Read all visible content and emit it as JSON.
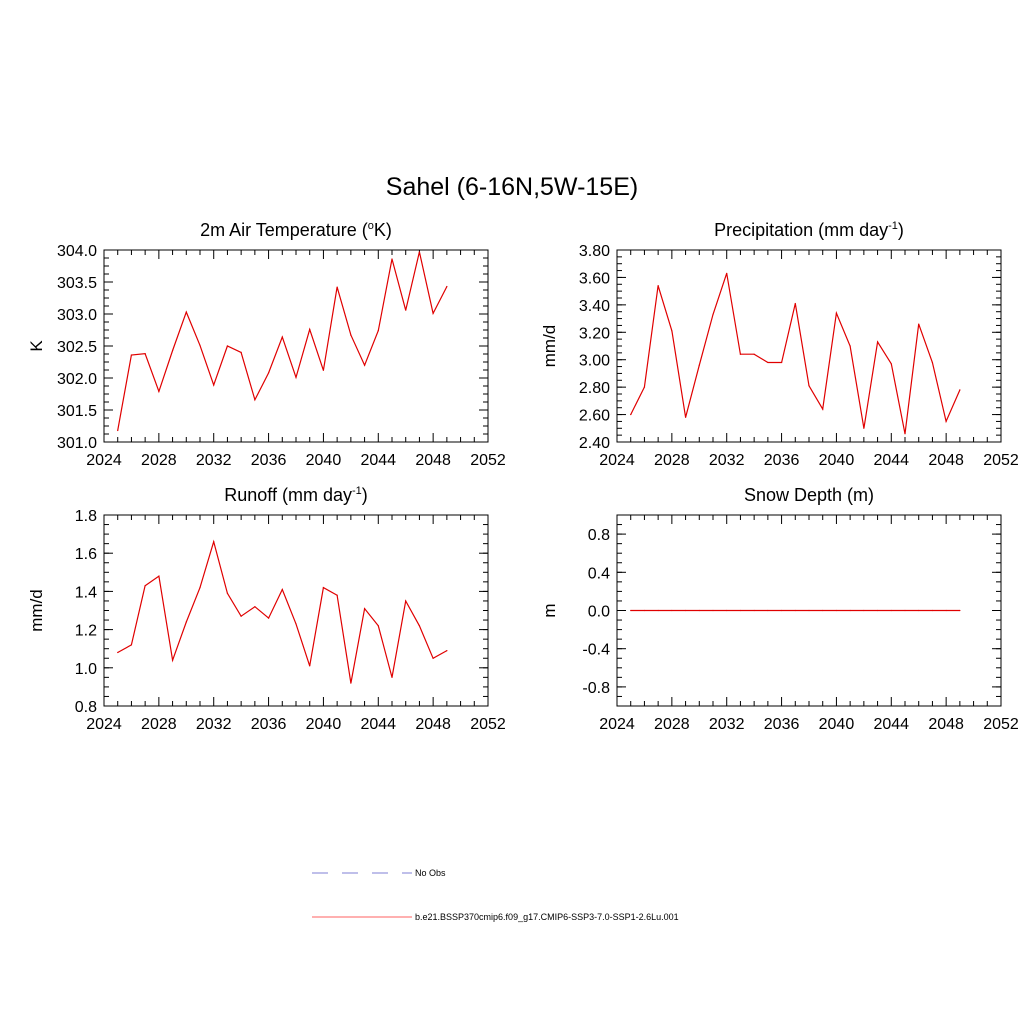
{
  "figure": {
    "title": "Sahel (6-16N,5W-15E)"
  },
  "chart_data": [
    {
      "type": "line",
      "title": "2m Air Temperature (",
      "title_sup": "o",
      "title_after": "K)",
      "ylabel": "K",
      "xlim": [
        2024,
        2052
      ],
      "ylim": [
        301.0,
        304.0
      ],
      "xticks": [
        "2024",
        "2028",
        "2032",
        "2036",
        "2040",
        "2044",
        "2048",
        "2052"
      ],
      "yticks": [
        "301.0",
        "301.5",
        "302.0",
        "302.5",
        "303.0",
        "303.5",
        "304.0"
      ],
      "x": [
        2025,
        2026,
        2027,
        2028,
        2029,
        2030,
        2031,
        2032,
        2033,
        2034,
        2035,
        2036,
        2037,
        2038,
        2039,
        2040,
        2041,
        2042,
        2043,
        2044,
        2045,
        2046,
        2047,
        2048,
        2049
      ],
      "series": [
        {
          "color": "#e00000",
          "values": [
            301.18,
            302.36,
            302.38,
            301.79,
            302.43,
            303.03,
            302.51,
            301.89,
            302.5,
            302.4,
            301.66,
            302.08,
            302.64,
            302.01,
            302.76,
            302.12,
            303.42,
            302.67,
            302.2,
            302.74,
            303.86,
            303.06,
            303.97,
            303.01,
            303.43
          ]
        }
      ]
    },
    {
      "type": "line",
      "title": "Precipitation (mm day",
      "title_sup": "-1",
      "title_after": ")",
      "ylabel": "mm/d",
      "xlim": [
        2024,
        2052
      ],
      "ylim": [
        2.4,
        3.8
      ],
      "xticks": [
        "2024",
        "2028",
        "2032",
        "2036",
        "2040",
        "2044",
        "2048",
        "2052"
      ],
      "yticks": [
        "2.40",
        "2.60",
        "2.80",
        "3.00",
        "3.20",
        "3.40",
        "3.60",
        "3.80"
      ],
      "x": [
        2025,
        2026,
        2027,
        2028,
        2029,
        2030,
        2031,
        2032,
        2033,
        2034,
        2035,
        2036,
        2037,
        2038,
        2039,
        2040,
        2041,
        2042,
        2043,
        2044,
        2045,
        2046,
        2047,
        2048,
        2049
      ],
      "series": [
        {
          "color": "#e00000",
          "values": [
            2.6,
            2.8,
            3.54,
            3.21,
            2.58,
            2.96,
            3.33,
            3.63,
            3.04,
            3.04,
            2.98,
            2.98,
            3.41,
            2.81,
            2.64,
            3.34,
            3.1,
            2.5,
            3.13,
            2.97,
            2.46,
            3.26,
            2.98,
            2.55,
            2.78
          ]
        }
      ]
    },
    {
      "type": "line",
      "title": "Runoff (mm day",
      "title_sup": "-1",
      "title_after": ")",
      "ylabel": "mm/d",
      "xlim": [
        2024,
        2052
      ],
      "ylim": [
        0.8,
        1.8
      ],
      "xticks": [
        "2024",
        "2028",
        "2032",
        "2036",
        "2040",
        "2044",
        "2048",
        "2052"
      ],
      "yticks": [
        "0.8",
        "1.0",
        "1.2",
        "1.4",
        "1.6",
        "1.8"
      ],
      "x": [
        2025,
        2026,
        2027,
        2028,
        2029,
        2030,
        2031,
        2032,
        2033,
        2034,
        2035,
        2036,
        2037,
        2038,
        2039,
        2040,
        2041,
        2042,
        2043,
        2044,
        2045,
        2046,
        2047,
        2048,
        2049
      ],
      "series": [
        {
          "color": "#e00000",
          "values": [
            1.08,
            1.12,
            1.43,
            1.48,
            1.04,
            1.24,
            1.42,
            1.66,
            1.39,
            1.27,
            1.32,
            1.26,
            1.41,
            1.23,
            1.01,
            1.42,
            1.38,
            0.92,
            1.31,
            1.22,
            0.95,
            1.35,
            1.22,
            1.05,
            1.09
          ]
        }
      ]
    },
    {
      "type": "line",
      "title": "Snow Depth (m)",
      "title_sup": "",
      "title_after": "",
      "ylabel": "m",
      "xlim": [
        2024,
        2052
      ],
      "ylim": [
        -1.0,
        1.0
      ],
      "xticks": [
        "2024",
        "2028",
        "2032",
        "2036",
        "2040",
        "2044",
        "2048",
        "2052"
      ],
      "yticks": [
        "-0.8",
        "-0.4",
        "0.0",
        "0.4",
        "0.8"
      ],
      "ytick_values": [
        -0.8,
        -0.4,
        0.0,
        0.4,
        0.8
      ],
      "x": [
        2025,
        2026,
        2027,
        2028,
        2029,
        2030,
        2031,
        2032,
        2033,
        2034,
        2035,
        2036,
        2037,
        2038,
        2039,
        2040,
        2041,
        2042,
        2043,
        2044,
        2045,
        2046,
        2047,
        2048,
        2049
      ],
      "series": [
        {
          "color": "#e00000",
          "values": [
            0,
            0,
            0,
            0,
            0,
            0,
            0,
            0,
            0,
            0,
            0,
            0,
            0,
            0,
            0,
            0,
            0,
            0,
            0,
            0,
            0,
            0,
            0,
            0,
            0
          ]
        }
      ]
    }
  ],
  "legend": {
    "items": [
      {
        "label": "No Obs",
        "color": "#9999dd",
        "dash": true
      },
      {
        "label": "b.e21.BSSP370cmip6.f09_g17.CMIP6-SSP3-7.0-SSP1-2.6Lu.001",
        "color": "#ff8080",
        "dash": false
      }
    ]
  }
}
